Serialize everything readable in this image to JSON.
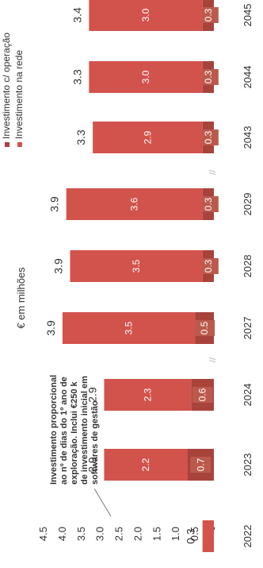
{
  "chart_data": {
    "type": "bar",
    "stacked": true,
    "orientation": "horizontal",
    "ylabel": "€ em milhões",
    "ylim": [
      0,
      4.5
    ],
    "yticks": [
      "-",
      "0.5",
      "1.0",
      "1.5",
      "2.0",
      "2.5",
      "3.0",
      "3.5",
      "4.0",
      "4.5"
    ],
    "categories": [
      "2022",
      "2023",
      "2024",
      "2027",
      "2028",
      "2029",
      "2043",
      "2044",
      "2045"
    ],
    "series": [
      {
        "name": "Investimento c/ operação",
        "color": "#a8433c",
        "values": [
          0.0,
          0.7,
          0.6,
          0.5,
          0.3,
          0.3,
          0.3,
          0.3,
          0.3
        ],
        "labels": [
          "",
          "0.7",
          "0.6",
          "0.5",
          "0.3",
          "0.3",
          "0.3",
          "0.3",
          "0.3"
        ]
      },
      {
        "name": "Investimento na rede",
        "color": "#d2534c",
        "values": [
          0.3,
          2.2,
          2.3,
          3.5,
          3.5,
          3.6,
          2.9,
          3.0,
          3.0
        ],
        "labels": [
          "",
          "2.2",
          "2.3",
          "3.5",
          "3.5",
          "3.6",
          "2.9",
          "3.0",
          "3.0"
        ]
      }
    ],
    "totals": [
      "0.3",
      "2.9",
      "2.9",
      "3.9",
      "3.9",
      "3.9",
      "3.3",
      "3.3",
      "3.4"
    ],
    "annotation": "Investimento proporcional ao nº de dias do 1º ano de exploração. Inclui €250 k de investimento inicial em softwares de gestão",
    "legend_position": "top-right"
  }
}
